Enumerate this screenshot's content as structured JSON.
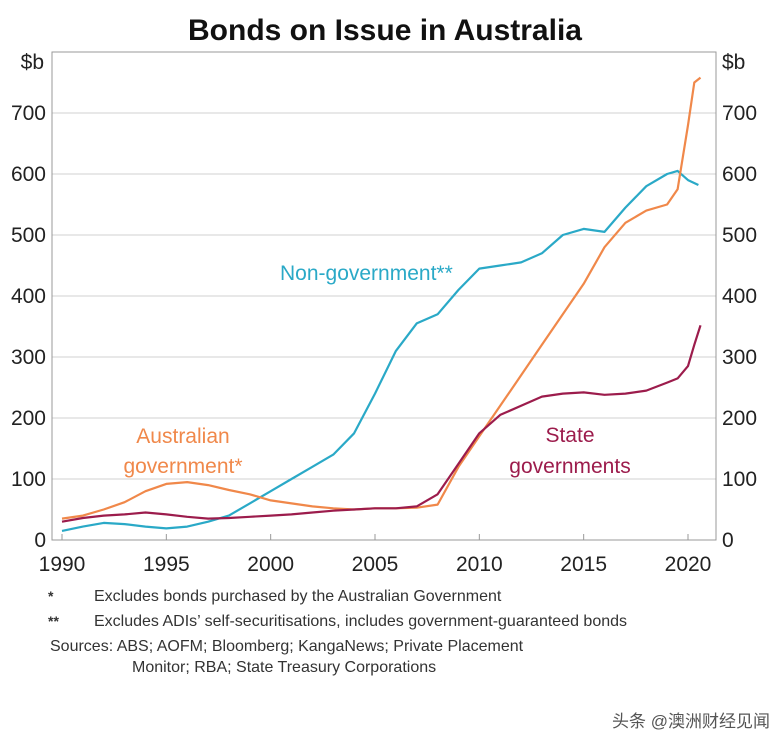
{
  "chart_data": {
    "type": "line",
    "title": "Bonds on Issue in Australia",
    "ylabel_left": "$b",
    "ylabel_right": "$b",
    "xlim": [
      1990,
      2021.5
    ],
    "ylim": [
      0,
      800
    ],
    "xticks": [
      "1990",
      "1995",
      "2000",
      "2005",
      "2010",
      "2015",
      "2020"
    ],
    "yticks": [
      "0",
      "100",
      "200",
      "300",
      "400",
      "500",
      "600",
      "700"
    ],
    "grid": true,
    "series": [
      {
        "name": "Non-government**",
        "label_lines": [
          "Non-government**"
        ],
        "color": "#2aa9c7",
        "x": [
          1990,
          1991,
          1992,
          1993,
          1994,
          1995,
          1996,
          1997,
          1998,
          1999,
          2000,
          2001,
          2002,
          2003,
          2004,
          2005,
          2006,
          2007,
          2008,
          2009,
          2010,
          2011,
          2012,
          2013,
          2014,
          2015,
          2016,
          2017,
          2018,
          2019,
          2019.5,
          2020,
          2020.5
        ],
        "y": [
          15,
          22,
          28,
          26,
          22,
          19,
          22,
          30,
          40,
          60,
          80,
          100,
          120,
          140,
          175,
          240,
          310,
          355,
          370,
          410,
          445,
          450,
          455,
          470,
          500,
          510,
          505,
          545,
          580,
          600,
          605,
          590,
          582
        ]
      },
      {
        "name": "Australian government*",
        "label_lines": [
          "Australian",
          "government*"
        ],
        "color": "#f0884a",
        "x": [
          1990,
          1991,
          1992,
          1993,
          1994,
          1995,
          1996,
          1997,
          1998,
          1999,
          2000,
          2001,
          2002,
          2003,
          2004,
          2005,
          2006,
          2007,
          2008,
          2009,
          2010,
          2011,
          2012,
          2013,
          2014,
          2015,
          2016,
          2017,
          2018,
          2019,
          2019.5,
          2020,
          2020.3,
          2020.6
        ],
        "y": [
          35,
          40,
          50,
          62,
          80,
          92,
          95,
          90,
          82,
          75,
          65,
          60,
          55,
          52,
          50,
          52,
          52,
          53,
          58,
          120,
          170,
          220,
          270,
          320,
          370,
          420,
          480,
          520,
          540,
          550,
          575,
          680,
          750,
          758
        ]
      },
      {
        "name": "State governments",
        "label_lines": [
          "State",
          "governments"
        ],
        "color": "#9c1c4c",
        "x": [
          1990,
          1991,
          1992,
          1993,
          1994,
          1995,
          1996,
          1997,
          1998,
          1999,
          2000,
          2001,
          2002,
          2003,
          2004,
          2005,
          2006,
          2007,
          2008,
          2009,
          2010,
          2011,
          2012,
          2013,
          2014,
          2015,
          2016,
          2017,
          2018,
          2019,
          2019.5,
          2020,
          2020.3,
          2020.6
        ],
        "y": [
          30,
          36,
          40,
          42,
          45,
          42,
          38,
          35,
          36,
          38,
          40,
          42,
          45,
          48,
          50,
          52,
          52,
          55,
          75,
          125,
          175,
          205,
          220,
          235,
          240,
          242,
          238,
          240,
          245,
          258,
          265,
          285,
          320,
          352
        ]
      }
    ]
  },
  "notes": [
    {
      "mark": "*",
      "text": "Excludes bonds purchased by the Australian Government"
    },
    {
      "mark": "**",
      "text": "Excludes ADIs’ self-securitisations, includes government-guaranteed bonds"
    }
  ],
  "sources": {
    "line1": "Sources: ABS; AOFM; Bloomberg; KangaNews; Private Placement",
    "line2": "Monitor; RBA; State Treasury Corporations"
  },
  "watermark": "头条 @澳洲财经见闻"
}
